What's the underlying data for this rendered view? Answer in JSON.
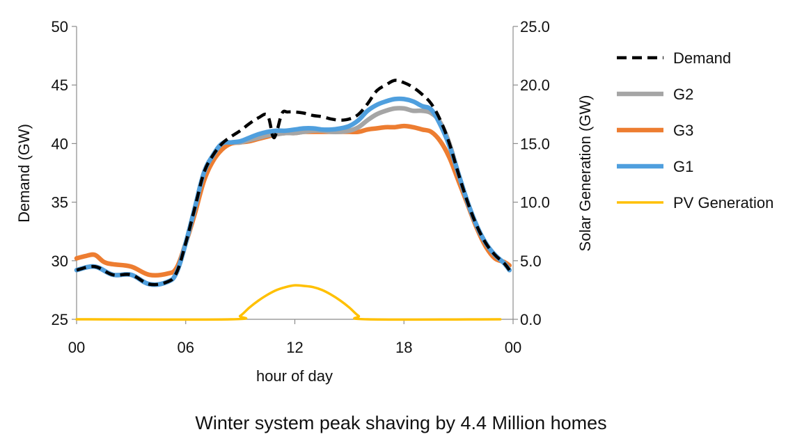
{
  "chart_data": {
    "type": "line",
    "caption": "Winter system peak shaving by 4.4 Million homes",
    "xlabel": "hour of day",
    "ylabel_left": "Demand (GW)",
    "ylabel_right": "Solar Generation (GW)",
    "x_ticks": [
      "00",
      "06",
      "12",
      "18",
      "00"
    ],
    "x_range_hours": [
      0,
      24
    ],
    "ylim_left": [
      25,
      50
    ],
    "ylim_right": [
      0,
      25
    ],
    "y_ticks_left": [
      "25",
      "30",
      "35",
      "40",
      "45",
      "50"
    ],
    "y_ticks_right": [
      "0.0",
      "5.0",
      "10.0",
      "15.0",
      "20.0",
      "25.0"
    ],
    "grid": false,
    "legend_position": "right",
    "series": [
      {
        "name": "Demand",
        "axis": "left",
        "color": "#000000",
        "dash": true,
        "x": [
          0,
          1,
          2,
          3,
          4,
          5,
          5.5,
          6,
          6.5,
          7,
          7.5,
          8,
          8.5,
          9,
          9.5,
          10,
          10.5,
          10.8,
          11,
          11.3,
          11.6,
          12,
          12.5,
          13,
          13.5,
          14,
          14.5,
          15,
          15.5,
          16,
          16.5,
          17,
          17.5,
          18,
          18.5,
          19,
          19.5,
          20,
          20.5,
          21,
          21.5,
          22,
          22.5,
          23,
          23.5,
          23.8
        ],
        "y": [
          29.2,
          29.5,
          28.8,
          28.8,
          28.0,
          28.2,
          29.0,
          31.5,
          34.5,
          37.5,
          39.0,
          40.0,
          40.6,
          41.1,
          41.7,
          42.2,
          42.4,
          40.6,
          41.0,
          42.6,
          42.7,
          42.7,
          42.6,
          42.4,
          42.3,
          42.1,
          42.0,
          42.1,
          42.5,
          43.4,
          44.5,
          45.0,
          45.4,
          45.2,
          44.8,
          44.2,
          43.4,
          42.0,
          40.0,
          37.4,
          35.0,
          33.0,
          31.5,
          30.5,
          29.8,
          29.2
        ]
      },
      {
        "name": "G2",
        "axis": "left",
        "color": "#a5a5a5",
        "dash": false,
        "x": [
          0,
          1,
          2,
          3,
          4,
          5,
          5.5,
          6,
          6.5,
          7,
          7.5,
          8,
          8.5,
          9,
          9.5,
          10,
          10.5,
          11,
          11.5,
          12,
          12.5,
          13,
          13.5,
          14,
          14.5,
          15,
          15.5,
          16,
          16.5,
          17,
          17.5,
          18,
          18.5,
          19,
          19.5,
          20,
          20.5,
          21,
          21.5,
          22,
          22.5,
          23,
          23.5,
          23.8
        ],
        "y": [
          29.2,
          29.5,
          28.8,
          28.8,
          28.0,
          28.2,
          29.0,
          31.5,
          34.5,
          37.5,
          39.0,
          40.0,
          40.1,
          40.1,
          40.3,
          40.5,
          40.7,
          40.8,
          40.9,
          40.9,
          41.0,
          41.1,
          41.1,
          41.0,
          41.0,
          41.1,
          41.4,
          42.0,
          42.5,
          42.8,
          43.0,
          43.0,
          42.8,
          42.8,
          42.6,
          41.8,
          40.0,
          37.4,
          35.0,
          33.0,
          31.5,
          30.5,
          29.8,
          29.2
        ]
      },
      {
        "name": "G3",
        "axis": "left",
        "color": "#ed7d31",
        "dash": false,
        "x": [
          0,
          0.5,
          1,
          1.5,
          2,
          3,
          4,
          5,
          5.5,
          6,
          6.5,
          7,
          7.5,
          8,
          8.5,
          9,
          9.5,
          10,
          10.5,
          11,
          11.5,
          12,
          12.5,
          13,
          13.5,
          14,
          14.5,
          15,
          15.5,
          16,
          16.5,
          17,
          17.5,
          18,
          18.5,
          19,
          19.5,
          20,
          20.5,
          21,
          21.5,
          22,
          22.5,
          23,
          23.5,
          23.8
        ],
        "y": [
          30.2,
          30.4,
          30.5,
          29.9,
          29.7,
          29.5,
          28.8,
          28.9,
          29.4,
          31.5,
          34.0,
          36.8,
          38.5,
          39.5,
          40.0,
          40.1,
          40.2,
          40.4,
          40.6,
          40.8,
          40.9,
          40.9,
          41.0,
          41.0,
          41.0,
          41.0,
          41.0,
          41.0,
          41.0,
          41.2,
          41.3,
          41.4,
          41.4,
          41.5,
          41.4,
          41.2,
          41.0,
          40.2,
          38.8,
          36.8,
          34.8,
          32.8,
          31.2,
          30.2,
          29.9,
          29.6
        ]
      },
      {
        "name": "G1",
        "axis": "left",
        "color": "#4f9fde",
        "dash": false,
        "x": [
          0,
          1,
          2,
          3,
          4,
          5,
          5.5,
          6,
          6.5,
          7,
          7.5,
          8,
          8.5,
          9,
          9.5,
          10,
          10.5,
          11,
          11.5,
          12,
          12.5,
          13,
          13.5,
          14,
          14.5,
          15,
          15.5,
          16,
          16.5,
          17,
          17.5,
          18,
          18.5,
          19,
          19.5,
          20,
          20.5,
          21,
          21.5,
          22,
          22.5,
          23,
          23.5,
          23.8
        ],
        "y": [
          29.2,
          29.5,
          28.8,
          28.8,
          28.0,
          28.2,
          29.0,
          31.5,
          34.5,
          37.5,
          39.0,
          40.0,
          40.1,
          40.2,
          40.5,
          40.8,
          41.0,
          41.1,
          41.1,
          41.2,
          41.3,
          41.3,
          41.2,
          41.2,
          41.3,
          41.5,
          42.0,
          42.8,
          43.3,
          43.6,
          43.8,
          43.8,
          43.6,
          43.2,
          42.9,
          41.6,
          39.8,
          37.4,
          35.0,
          33.0,
          31.5,
          30.5,
          29.8,
          29.2
        ]
      },
      {
        "name": "PV Generation",
        "axis": "right",
        "color": "#ffc000",
        "dash": false,
        "x": [
          0,
          8.5,
          9,
          9.5,
          10,
          10.5,
          11,
          11.5,
          12,
          12.5,
          13,
          13.5,
          14,
          14.5,
          15,
          15.5,
          16,
          23.3
        ],
        "y": [
          0,
          0,
          0.3,
          1.0,
          1.6,
          2.1,
          2.5,
          2.75,
          2.9,
          2.85,
          2.75,
          2.5,
          2.1,
          1.6,
          1.0,
          0.3,
          0,
          0
        ]
      }
    ]
  }
}
